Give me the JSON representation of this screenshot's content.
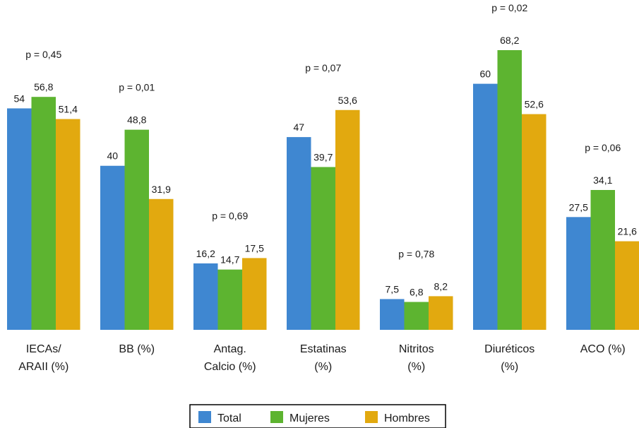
{
  "chart_data": {
    "type": "bar",
    "categories": [
      [
        "IECAs/",
        "ARAII (%)"
      ],
      [
        "BB (%)"
      ],
      [
        "Antag.",
        "Calcio (%)"
      ],
      [
        "Estatinas",
        "(%)"
      ],
      [
        "Nitritos",
        "(%)"
      ],
      [
        "Diuréticos",
        "(%)"
      ],
      [
        "ACO (%)"
      ]
    ],
    "series": [
      {
        "name": "Total",
        "color": "#3f87d1",
        "values": [
          54,
          40,
          16.2,
          47,
          7.5,
          60,
          27.5
        ],
        "labels": [
          "54",
          "40",
          "16,2",
          "47",
          "7,5",
          "60",
          "27,5"
        ]
      },
      {
        "name": "Mujeres",
        "color": "#5db430",
        "values": [
          56.8,
          48.8,
          14.7,
          39.7,
          6.8,
          68.2,
          34.1
        ],
        "labels": [
          "56,8",
          "48,8",
          "14,7",
          "39,7",
          "6,8",
          "68,2",
          "34,1"
        ]
      },
      {
        "name": "Hombres",
        "color": "#e2a90f",
        "values": [
          51.4,
          31.9,
          17.5,
          53.6,
          8.2,
          52.6,
          21.6
        ],
        "labels": [
          "51,4",
          "31,9",
          "17,5",
          "53,6",
          "8,2",
          "52,6",
          "21,6"
        ]
      }
    ],
    "p_values": [
      "p = 0,45",
      "p = 0,01",
      "p = 0,69",
      "p = 0,07",
      "p = 0,78",
      "p = 0,02",
      "p = 0,06"
    ],
    "title": "",
    "xlabel": "",
    "ylabel": "",
    "ylim": [
      0,
      68.2
    ],
    "grid": false,
    "legend_position": "bottom-center"
  }
}
